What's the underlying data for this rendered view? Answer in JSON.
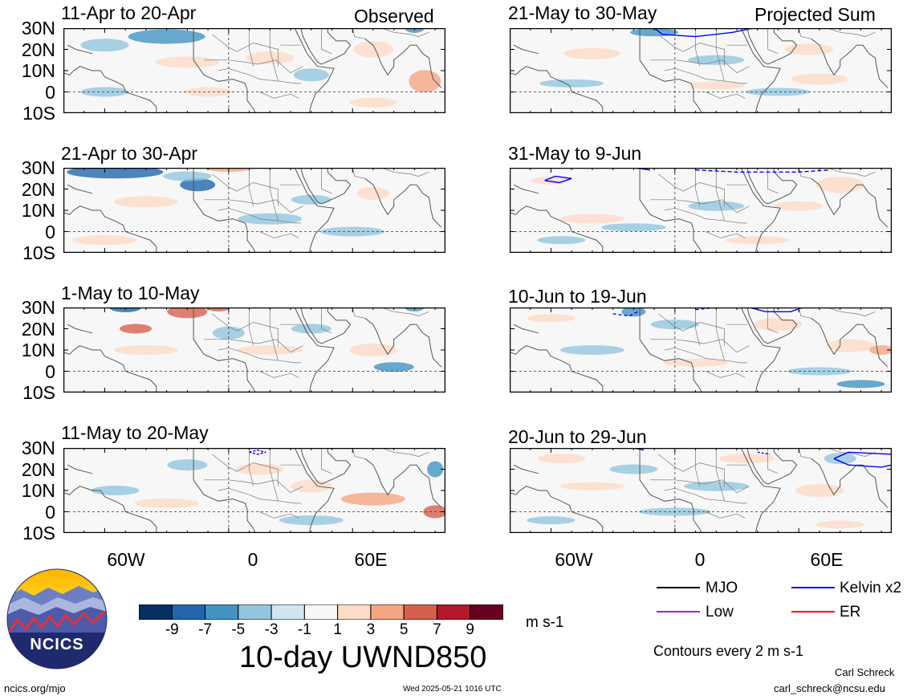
{
  "headers": {
    "observed": "Observed",
    "projected": "Projected Sum"
  },
  "lat_ticks": [
    "30N",
    "20N",
    "10N",
    "0",
    "10S"
  ],
  "lon_ticks": [
    "60W",
    "0",
    "60E"
  ],
  "chart_data": [
    {
      "type": "heatmap",
      "title": "11-Apr to 20-Apr",
      "group": "Observed",
      "xlim": [
        "80W",
        "105E"
      ],
      "ylim": [
        "10S",
        "30N"
      ],
      "contours": []
    },
    {
      "type": "heatmap",
      "title": "21-Apr to 30-Apr",
      "group": "Observed",
      "xlim": [
        "80W",
        "105E"
      ],
      "ylim": [
        "10S",
        "30N"
      ],
      "contours": []
    },
    {
      "type": "heatmap",
      "title": "1-May to 10-May",
      "group": "Observed",
      "xlim": [
        "80W",
        "105E"
      ],
      "ylim": [
        "10S",
        "30N"
      ],
      "contours": []
    },
    {
      "type": "heatmap",
      "title": "11-May to 20-May",
      "group": "Observed",
      "xlim": [
        "80W",
        "105E"
      ],
      "ylim": [
        "10S",
        "30N"
      ],
      "contours": [
        "Kelvin x2"
      ]
    },
    {
      "type": "heatmap",
      "title": "21-May to 30-May",
      "group": "Projected Sum",
      "xlim": [
        "80W",
        "105E"
      ],
      "ylim": [
        "10S",
        "30N"
      ],
      "contours": [
        "Kelvin x2"
      ]
    },
    {
      "type": "heatmap",
      "title": "31-May to 9-Jun",
      "group": "Projected Sum",
      "xlim": [
        "80W",
        "105E"
      ],
      "ylim": [
        "10S",
        "30N"
      ],
      "contours": [
        "Kelvin x2"
      ]
    },
    {
      "type": "heatmap",
      "title": "10-Jun to 19-Jun",
      "group": "Projected Sum",
      "xlim": [
        "80W",
        "105E"
      ],
      "ylim": [
        "10S",
        "30N"
      ],
      "contours": [
        "Kelvin x2"
      ]
    },
    {
      "type": "heatmap",
      "title": "20-Jun to 29-Jun",
      "group": "Projected Sum",
      "xlim": [
        "80W",
        "105E"
      ],
      "ylim": [
        "10S",
        "30N"
      ],
      "contours": [
        "Kelvin x2"
      ]
    }
  ],
  "colorbar": {
    "ticks": [
      "-9",
      "-7",
      "-5",
      "-3",
      "-1",
      "1",
      "3",
      "5",
      "7",
      "9"
    ],
    "colors": [
      "#053061",
      "#2166ac",
      "#4393c3",
      "#92c5de",
      "#d1e5f0",
      "#f7f7f7",
      "#fddbc7",
      "#f4a582",
      "#d6604d",
      "#b2182b",
      "#67001f"
    ],
    "units": "m s-1",
    "title": "10-day UWND850"
  },
  "contour_legend": [
    {
      "label": "MJO",
      "color": "#000000",
      "style": "solid"
    },
    {
      "label": "Kelvin x2",
      "color": "#0000ff",
      "style": "solid"
    },
    {
      "label": "Low",
      "color": "#a020f0",
      "style": "solid"
    },
    {
      "label": "ER",
      "color": "#ff0000",
      "style": "solid"
    }
  ],
  "contour_note": "Contours every 2 m s-1",
  "logo": {
    "text": "NCICS"
  },
  "footer": {
    "url": "ncics.org/mjo",
    "timestamp": "Wed 2025-05-21 1016 UTC",
    "author": "Carl Schreck",
    "email": "carl_schreck@ncsu.edu"
  }
}
